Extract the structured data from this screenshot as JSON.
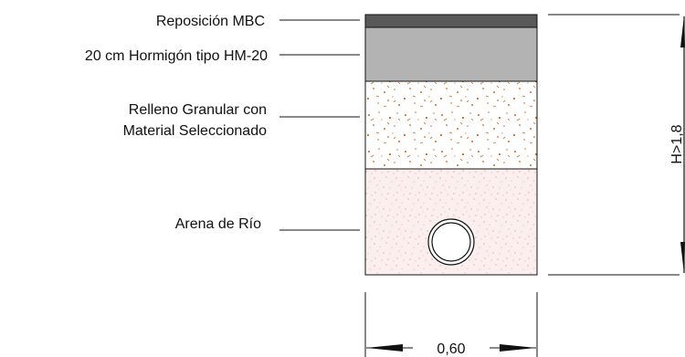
{
  "layers": [
    {
      "lines": [
        "Reposición MBC"
      ],
      "color": "#595959"
    },
    {
      "lines": [
        "20 cm Hormigón tipo HM-20"
      ],
      "color": "#b3b3b3"
    },
    {
      "lines": [
        "Relleno Granular con",
        "Material Seleccionado"
      ],
      "color": "#ffffff",
      "speckle": "#d2691e"
    },
    {
      "lines": [
        "Arena de Río"
      ],
      "color": "#fbeeee",
      "speckle": "#d98b84"
    }
  ],
  "dimensions": {
    "width_label": "0,60",
    "height_label_partial": "H>1,8"
  },
  "colors": {
    "line": "#111111",
    "pipe_fill": "#ffffff"
  }
}
